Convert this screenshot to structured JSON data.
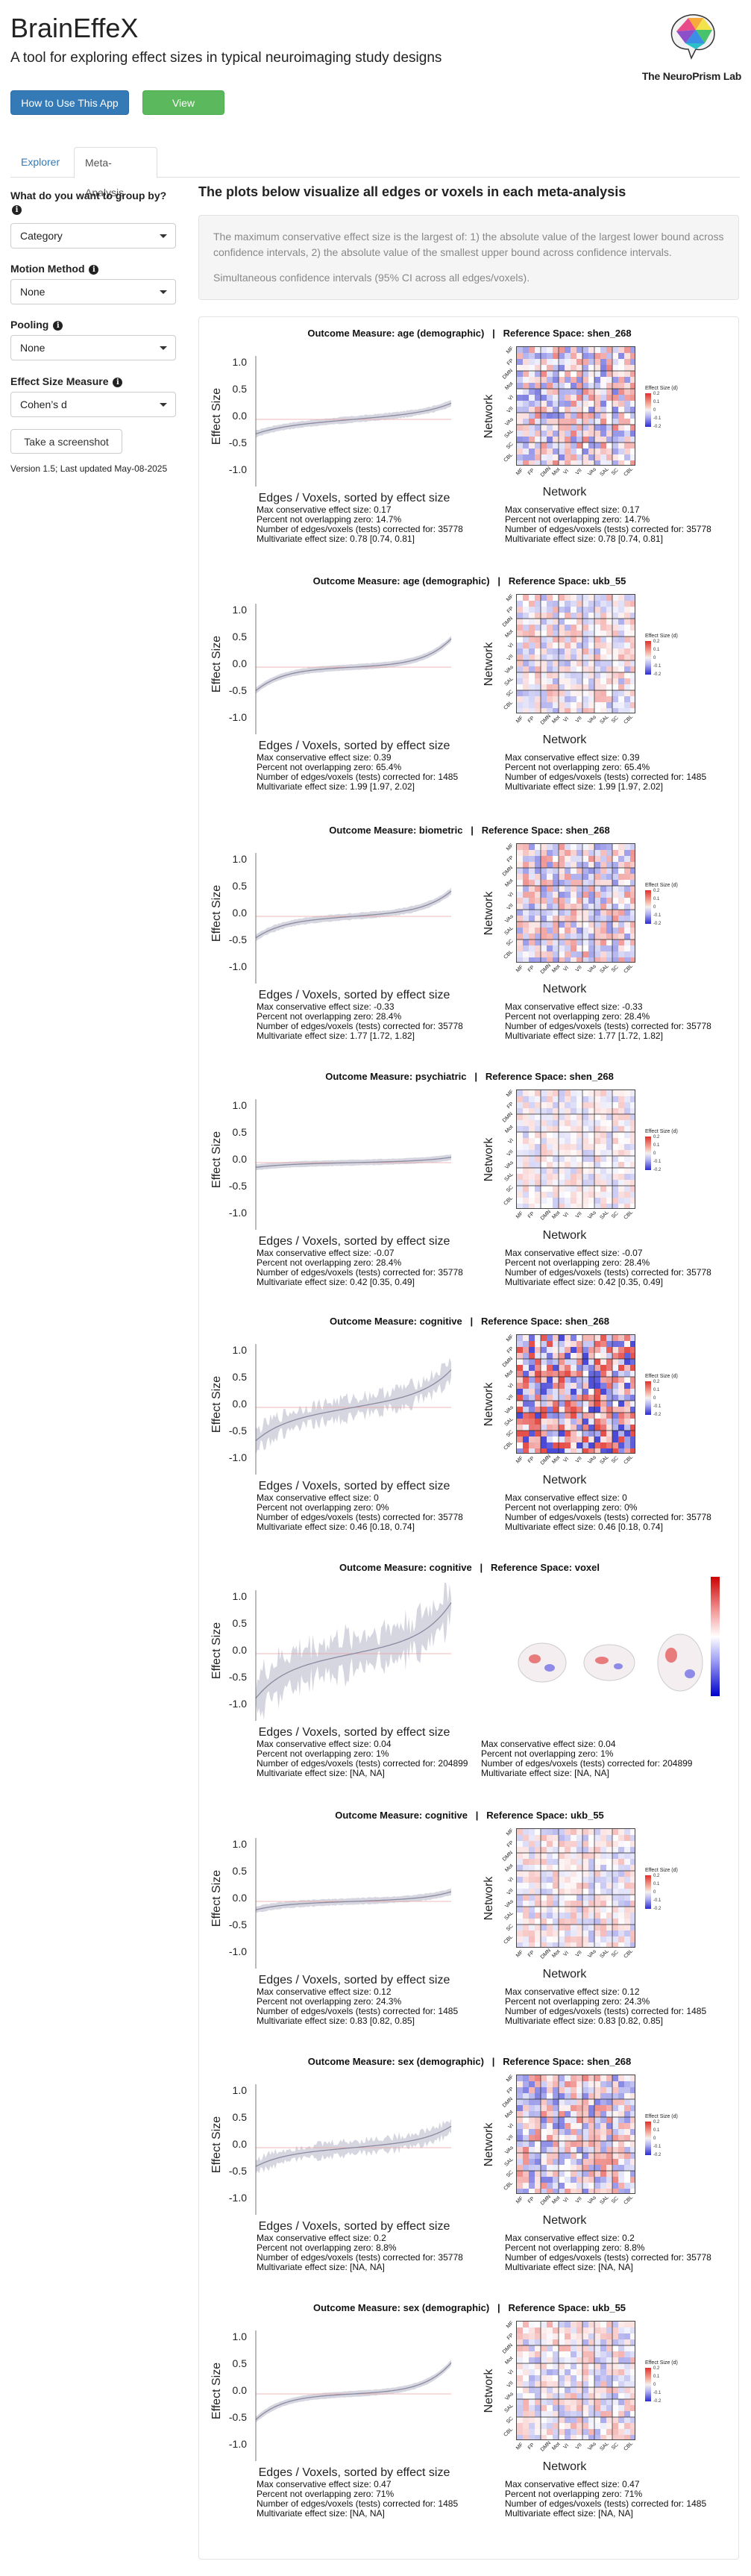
{
  "app": {
    "title": "BrainEffeX",
    "subtitle": "A tool for exploring effect sizes in typical neuroimaging study designs",
    "lab_name": "The NeuroPrism Lab",
    "logo_icon": "neuroprism-brain-logo"
  },
  "header_buttons": {
    "how_to": "How to Use This App",
    "preprint": "View Preprint"
  },
  "tabs": [
    {
      "label": "Explorer"
    },
    {
      "label": "Meta-Analysis"
    }
  ],
  "sidebar": {
    "group_by": {
      "label": "What do you want to group by?",
      "value": "Category"
    },
    "motion": {
      "label": "Motion Method",
      "value": "None"
    },
    "pooling": {
      "label": "Pooling",
      "value": "None"
    },
    "effect_measure": {
      "label": "Effect Size Measure",
      "value": "Cohen’s d"
    },
    "screenshot_button": "Take a screenshot",
    "version": "Version 1.5; Last updated May-08-2025"
  },
  "main": {
    "heading": "The plots below visualize all edges or voxels in each meta-analysis",
    "info_para1": "The maximum conservative effect size is the largest of: 1) the absolute value of the largest lower bound across confidence intervals, 2) the absolute value of the smallest upper bound across confidence intervals.",
    "info_para2": "Simultaneous confidence intervals (95% CI across all edges/voxels)."
  },
  "plot_labels": {
    "y_axis": "Effect Size",
    "x_axis": "Edges / Voxels, sorted by effect size",
    "network_axis": "Network",
    "colorbar_title": "Effect Size (d)",
    "y_ticks": [
      "1.0",
      "0.5",
      "0.0",
      "-0.5",
      "-1.0"
    ],
    "network_ticks": [
      "MF",
      "FP",
      "DMN",
      "Mot",
      "VI",
      "VII",
      "VAs",
      "SAL",
      "SC",
      "CBL"
    ],
    "colorbar_ticks": [
      "0.2",
      "0.1",
      "0",
      "-0.1",
      "-0.2"
    ]
  },
  "sections": [
    {
      "outcome": "Outcome Measure: age (demographic)",
      "space": "Reference Space: shen_268",
      "type": "matrix",
      "spread": 0.15,
      "noise": 0.02,
      "tail": 0.15,
      "max_es": "Max conservative effect size: 0.17",
      "pct": "Percent not overlapping zero: 14.7%",
      "n": "Number of edges/voxels (tests) corrected for: 35778",
      "mv": "Multivariate effect size: 0.78 [0.74, 0.81]"
    },
    {
      "outcome": "Outcome Measure: age (demographic)",
      "space": "Reference Space: ukb_55",
      "type": "matrix",
      "spread": 0.08,
      "noise": 0.01,
      "tail": 0.45,
      "max_es": "Max conservative effect size: 0.39",
      "pct": "Percent not overlapping zero: 65.4%",
      "n": "Number of edges/voxels (tests) corrected for: 1485",
      "mv": "Multivariate effect size: 1.99 [1.97, 2.02]"
    },
    {
      "outcome": "Outcome Measure: biometric",
      "space": "Reference Space: shen_268",
      "type": "matrix",
      "spread": 0.12,
      "noise": 0.02,
      "tail": 0.35,
      "max_es": "Max conservative effect size: -0.33",
      "pct": "Percent not overlapping zero: 28.4%",
      "n": "Number of edges/voxels (tests) corrected for: 35778",
      "mv": "Multivariate effect size: 1.77 [1.72, 1.82]"
    },
    {
      "outcome": "Outcome Measure: psychiatric",
      "space": "Reference Space: shen_268",
      "type": "matrix",
      "spread": 0.04,
      "noise": 0.01,
      "tail": 0.06,
      "max_es": "Max conservative effect size: -0.07",
      "pct": "Percent not overlapping zero: 28.4%",
      "n": "Number of edges/voxels (tests) corrected for: 35778",
      "mv": "Multivariate effect size: 0.42 [0.35, 0.49]"
    },
    {
      "outcome": "Outcome Measure: cognitive",
      "space": "Reference Space: shen_268",
      "type": "matrix",
      "spread": 0.3,
      "noise": 0.25,
      "tail": 0.4,
      "max_es": "Max conservative effect size: 0",
      "pct": "Percent not overlapping zero: 0%",
      "n": "Number of edges/voxels (tests) corrected for: 35778",
      "mv": "Multivariate effect size: 0.46 [0.18, 0.74]"
    },
    {
      "outcome": "Outcome Measure: cognitive",
      "space": "Reference Space: voxel",
      "type": "voxel",
      "spread": 0.35,
      "noise": 0.55,
      "tail": 0.6,
      "max_es": "Max conservative effect size: 0.04",
      "pct": "Percent not overlapping zero: 1%",
      "n": "Number of edges/voxels (tests) corrected for: 204899",
      "mv": "Multivariate effect size:  [NA, NA]"
    },
    {
      "outcome": "Outcome Measure: cognitive",
      "space": "Reference Space: ukb_55",
      "type": "matrix",
      "spread": 0.06,
      "noise": 0.02,
      "tail": 0.12,
      "max_es": "Max conservative effect size: 0.12",
      "pct": "Percent not overlapping zero: 24.3%",
      "n": "Number of edges/voxels (tests) corrected for: 1485",
      "mv": "Multivariate effect size: 0.83 [0.82, 0.85]"
    },
    {
      "outcome": "Outcome Measure: sex (demographic)",
      "space": "Reference Space: shen_268",
      "type": "matrix",
      "spread": 0.15,
      "noise": 0.15,
      "tail": 0.25,
      "max_es": "Max conservative effect size: 0.2",
      "pct": "Percent not overlapping zero: 8.8%",
      "n": "Number of edges/voxels (tests) corrected for: 35778",
      "mv": "Multivariate effect size:  [NA, NA]"
    },
    {
      "outcome": "Outcome Measure: sex (demographic)",
      "space": "Reference Space: ukb_55",
      "type": "matrix",
      "spread": 0.08,
      "noise": 0.01,
      "tail": 0.5,
      "max_es": "Max conservative effect size: 0.47",
      "pct": "Percent not overlapping zero: 71%",
      "n": "Number of edges/voxels (tests) corrected for: 1485",
      "mv": "Multivariate effect size:  [NA, NA]"
    }
  ],
  "colors": {
    "primary": "#337ab7",
    "success": "#5cb85c",
    "band": "#d6d6e0",
    "line": "#8a8aa0",
    "positive": "#e0312c",
    "negative": "#2a2ad0"
  }
}
